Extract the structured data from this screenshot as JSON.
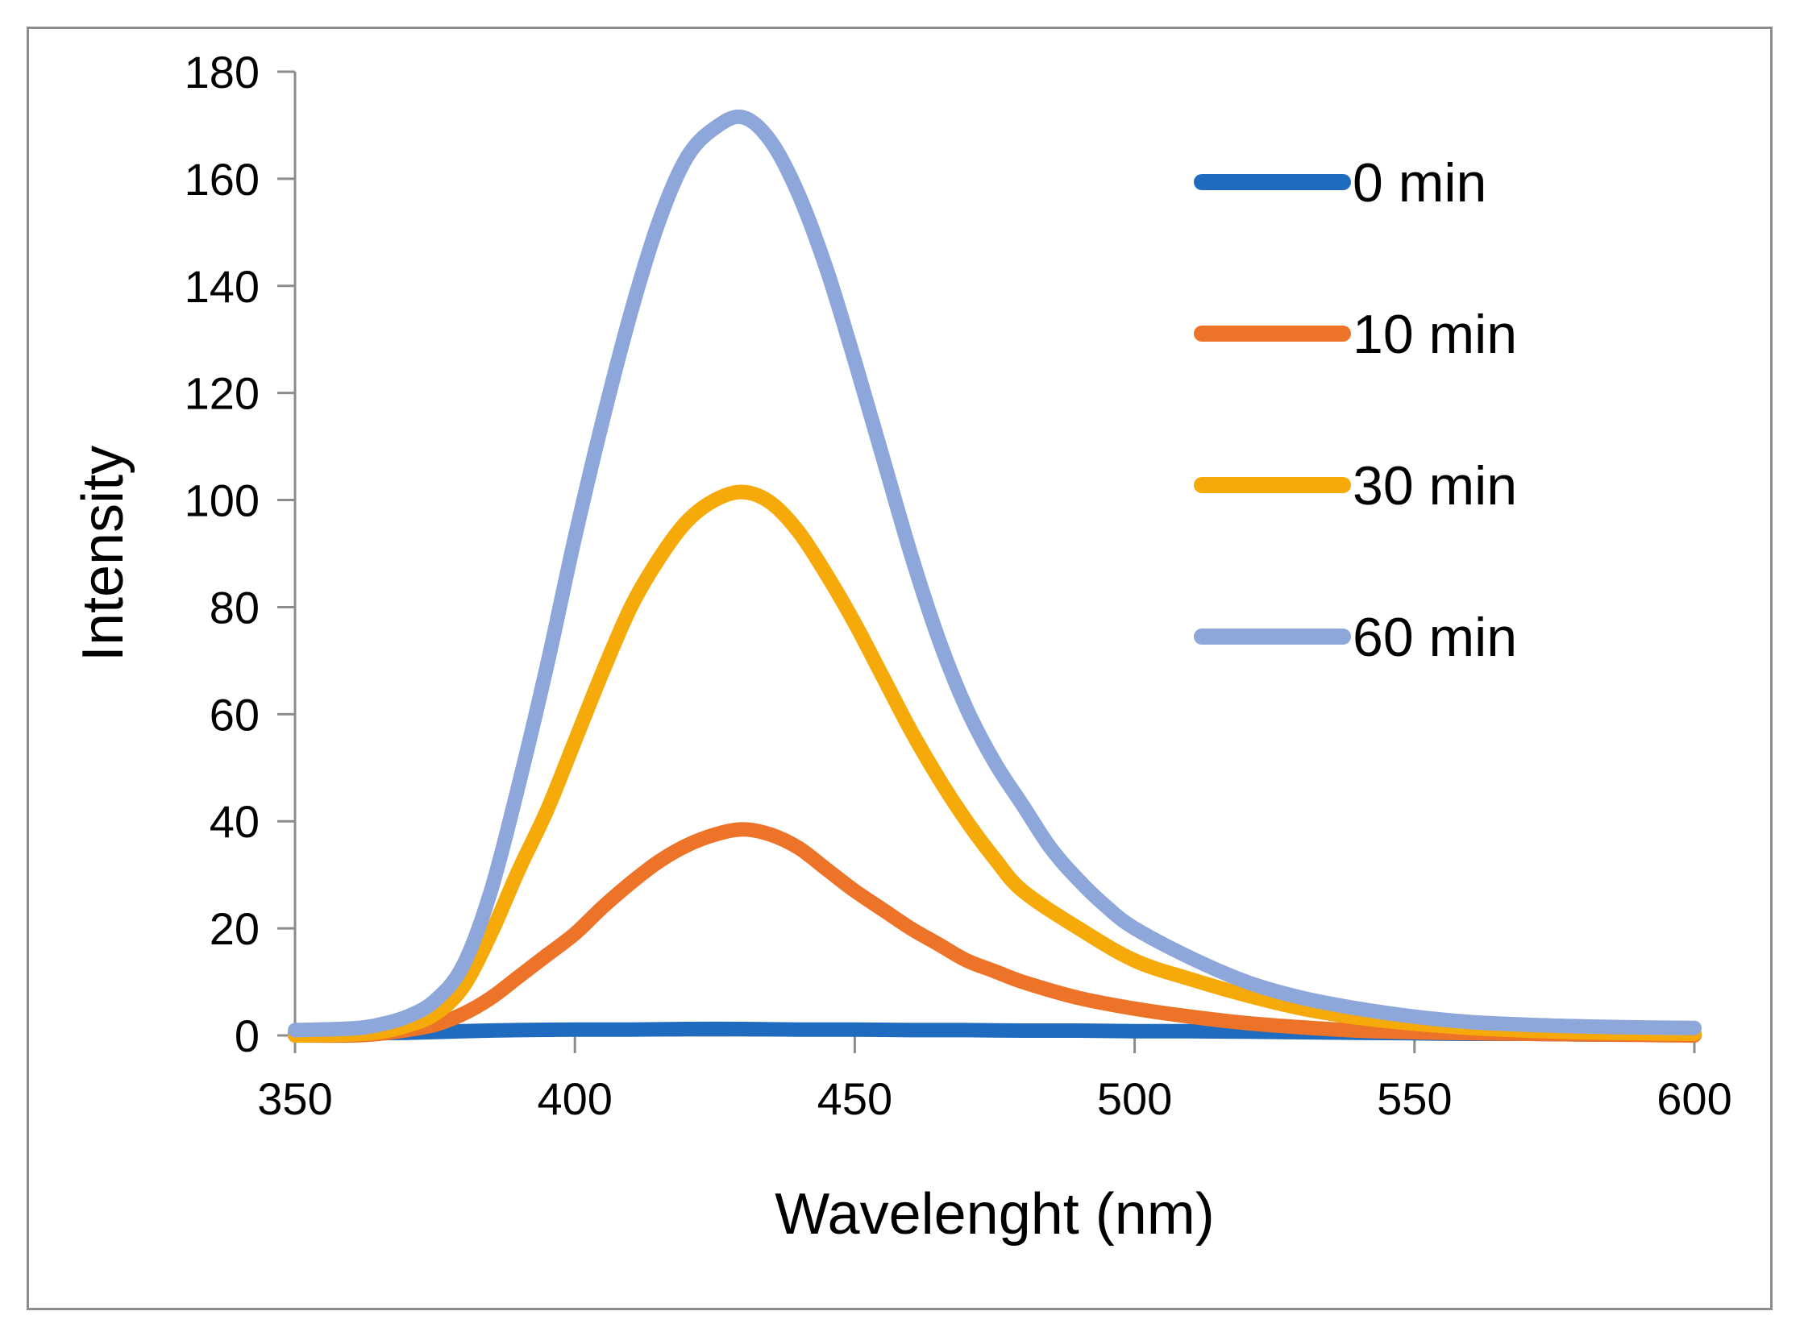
{
  "chart_data": {
    "type": "line",
    "title": "",
    "xlabel": "Wavelenght (nm)",
    "ylabel": "Intensity",
    "xlim": [
      350,
      600
    ],
    "ylim": [
      0,
      180
    ],
    "xticks": [
      350,
      400,
      450,
      500,
      550,
      600
    ],
    "yticks": [
      0,
      20,
      40,
      60,
      80,
      100,
      120,
      140,
      160,
      180
    ],
    "grid": false,
    "legend_position": "right",
    "series": [
      {
        "name": "0 min",
        "color": "#1F6BBF",
        "x": [
          350,
          360,
          370,
          380,
          390,
          400,
          410,
          420,
          430,
          440,
          450,
          460,
          470,
          480,
          490,
          500,
          510,
          520,
          530,
          540,
          550,
          560,
          570,
          580,
          590,
          600
        ],
        "y": [
          0.3,
          0.4,
          0.5,
          0.8,
          1.0,
          1.1,
          1.1,
          1.2,
          1.2,
          1.1,
          1.1,
          1.0,
          1.0,
          0.9,
          0.9,
          0.8,
          0.8,
          0.7,
          0.6,
          0.5,
          0.4,
          0.3,
          0.3,
          0.2,
          0.2,
          0.2
        ]
      },
      {
        "name": "10 min",
        "color": "#ED7328",
        "x": [
          350,
          360,
          365,
          370,
          375,
          380,
          385,
          390,
          395,
          400,
          405,
          410,
          415,
          420,
          425,
          430,
          435,
          440,
          445,
          450,
          455,
          460,
          465,
          470,
          475,
          480,
          490,
          500,
          510,
          520,
          530,
          540,
          550,
          560,
          570,
          580,
          590,
          600
        ],
        "y": [
          0.0,
          0.0,
          0.3,
          1.0,
          2.0,
          4.0,
          7.0,
          11.0,
          15.0,
          19.0,
          24.0,
          28.5,
          32.5,
          35.5,
          37.5,
          38.5,
          37.5,
          35.0,
          31.0,
          27.0,
          23.5,
          20.0,
          17.0,
          14.0,
          12.0,
          10.0,
          7.0,
          5.0,
          3.5,
          2.3,
          1.5,
          0.9,
          0.6,
          0.4,
          0.3,
          0.2,
          0.1,
          0.0
        ]
      },
      {
        "name": "30 min",
        "color": "#F5AA0A",
        "x": [
          350,
          360,
          365,
          370,
          375,
          380,
          385,
          390,
          395,
          400,
          405,
          410,
          415,
          420,
          425,
          430,
          435,
          440,
          445,
          450,
          455,
          460,
          465,
          470,
          475,
          480,
          490,
          500,
          510,
          520,
          530,
          540,
          550,
          560,
          570,
          580,
          590,
          600
        ],
        "y": [
          0.0,
          0.2,
          0.6,
          1.8,
          4.0,
          9.0,
          19.0,
          31.0,
          42.0,
          55.0,
          68.0,
          80.0,
          89.0,
          96.0,
          100.0,
          101.5,
          99.5,
          94.0,
          86.0,
          77.0,
          67.0,
          57.0,
          48.0,
          40.0,
          33.0,
          27.0,
          20.0,
          14.0,
          10.5,
          7.5,
          5.0,
          3.3,
          2.2,
          1.4,
          0.9,
          0.6,
          0.4,
          0.3
        ]
      },
      {
        "name": "60 min",
        "color": "#8EA7DA",
        "x": [
          350,
          360,
          365,
          370,
          375,
          380,
          385,
          390,
          395,
          400,
          405,
          410,
          415,
          420,
          425,
          430,
          435,
          440,
          445,
          450,
          455,
          460,
          465,
          470,
          475,
          480,
          485,
          490,
          495,
          500,
          510,
          520,
          530,
          540,
          550,
          560,
          570,
          580,
          590,
          600
        ],
        "y": [
          1.0,
          1.3,
          2.0,
          3.5,
          6.5,
          13.0,
          27.0,
          47.0,
          69.0,
          93.0,
          115.0,
          135.0,
          152.0,
          164.0,
          169.5,
          171.5,
          167.0,
          157.0,
          143.0,
          126.0,
          108.0,
          90.0,
          74.0,
          61.0,
          51.0,
          43.0,
          35.0,
          29.0,
          24.0,
          20.0,
          14.5,
          10.0,
          7.0,
          5.0,
          3.5,
          2.5,
          2.0,
          1.7,
          1.5,
          1.4
        ]
      }
    ]
  }
}
